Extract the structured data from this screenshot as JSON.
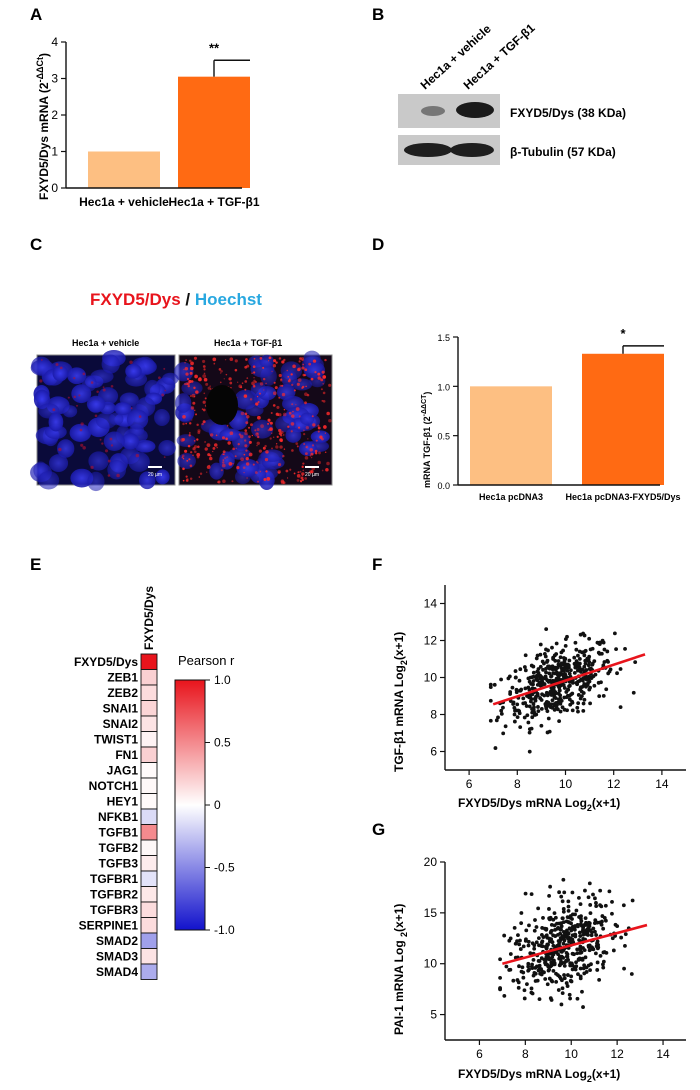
{
  "panels": {
    "A": "A",
    "B": "B",
    "C": "C",
    "D": "D",
    "E": "E",
    "F": "F",
    "G": "G"
  },
  "colors": {
    "light_bar": "#FDBF82",
    "dark_bar": "#FF6A13",
    "red": "#E8141C",
    "blue": "#29A8E0"
  },
  "chart_data": [
    {
      "id": "A",
      "type": "bar",
      "categories": [
        "Hec1a + vehicle",
        "Hec1a + TGF-β1"
      ],
      "values": [
        1.0,
        3.05
      ],
      "errors": [
        0,
        0.45
      ],
      "annotations": [
        "",
        "**"
      ],
      "ylabel": "FXYD5/Dys mRNA (2",
      "ylabel_sup": "-ΔΔCt",
      "ylabel_end": ")",
      "ylim": [
        0,
        4
      ],
      "yticks": [
        "0",
        "1",
        "2",
        "3",
        "4"
      ]
    },
    {
      "id": "D",
      "type": "bar",
      "categories": [
        "Hec1a pcDNA3",
        "Hec1a pcDNA3-FXYD5/Dys"
      ],
      "values": [
        1.0,
        1.33
      ],
      "errors": [
        0,
        0.08
      ],
      "annotations": [
        "",
        "*"
      ],
      "ylabel": "mRNA TGF-β1 (2",
      "ylabel_sup": "-ΔΔCT",
      "ylabel_end": ")",
      "ylim": [
        0,
        1.5
      ],
      "yticks": [
        "0.0",
        "0.5",
        "1.0",
        "1.5"
      ]
    },
    {
      "id": "E",
      "type": "heatmap",
      "column": "FXYD5/Dys",
      "rows": [
        "FXYD5/Dys",
        "ZEB1",
        "ZEB2",
        "SNAI1",
        "SNAI2",
        "TWIST1",
        "FN1",
        "JAG1",
        "NOTCH1",
        "HEY1",
        "NFKB1",
        "TGFB1",
        "TGFB2",
        "TGFB3",
        "TGFBR1",
        "TGFBR2",
        "TGFBR3",
        "SERPINE1",
        "SMAD2",
        "SMAD3",
        "SMAD4"
      ],
      "values": [
        1.0,
        0.2,
        0.15,
        0.18,
        0.12,
        0.05,
        0.2,
        0.02,
        0.03,
        0.02,
        -0.15,
        0.5,
        0.03,
        0.08,
        -0.12,
        0.1,
        0.15,
        0.15,
        -0.4,
        0.12,
        -0.35
      ],
      "legend_title": "Pearson r",
      "legend_ticks": [
        "1.0",
        "0.5",
        "0",
        "-0.5",
        "-1.0"
      ],
      "range": [
        -1,
        1
      ]
    },
    {
      "id": "F",
      "type": "scatter",
      "xlabel": "FXYD5/Dys mRNA Log",
      "xlabel_sub": "2",
      "xlabel_end": "(x+1)",
      "ylabel": "TGF-β1 mRNA Log",
      "ylabel_sub": "2",
      "ylabel_end": "(x+1)",
      "xlim": [
        5,
        15
      ],
      "ylim": [
        5,
        15
      ],
      "xticks": [
        "6",
        "8",
        "10",
        "12",
        "14"
      ],
      "yticks": [
        "6",
        "8",
        "10",
        "12",
        "14"
      ],
      "fit": {
        "x": [
          7.0,
          13.3
        ],
        "y": [
          8.55,
          11.25
        ]
      },
      "n_points": 480,
      "x_center": 9.7,
      "x_spread": 1.15,
      "x_min": 6.9,
      "x_max": 13.4,
      "y_intercept": 5.55,
      "y_slope": 0.43,
      "y_spread": 0.95
    },
    {
      "id": "G",
      "type": "scatter",
      "xlabel": "FXYD5/Dys mRNA Log",
      "xlabel_sub": "2",
      "xlabel_end": "(x+1)",
      "ylabel": "PAI-1 mRNA Log ",
      "ylabel_sub": "2",
      "ylabel_end": "(x+1)",
      "xlim": [
        4.5,
        15
      ],
      "ylim": [
        2.5,
        20
      ],
      "xticks": [
        "6",
        "8",
        "10",
        "12",
        "14"
      ],
      "yticks": [
        "5",
        "10",
        "15",
        "20"
      ],
      "fit": {
        "x": [
          7.0,
          13.3
        ],
        "y": [
          10.0,
          13.8
        ]
      },
      "n_points": 480,
      "x_center": 9.7,
      "x_spread": 1.15,
      "x_min": 6.9,
      "x_max": 13.4,
      "y_intercept": 5.8,
      "y_slope": 0.6,
      "y_spread": 2.3
    }
  ],
  "blot": {
    "lanes": [
      "Hec1a + vehicle",
      "Hec1a + TGF-β1"
    ],
    "bands": [
      "FXYD5/Dys (38 KDa)",
      "β-Tubulin (57 KDa)"
    ]
  },
  "micro": {
    "title_red": "FXYD5/Dys",
    "title_sep": " / ",
    "title_blue": "Hoechst",
    "images": [
      "Hec1a + vehicle",
      "Hec1a + TGF-β1"
    ],
    "scale": "20 µm"
  }
}
